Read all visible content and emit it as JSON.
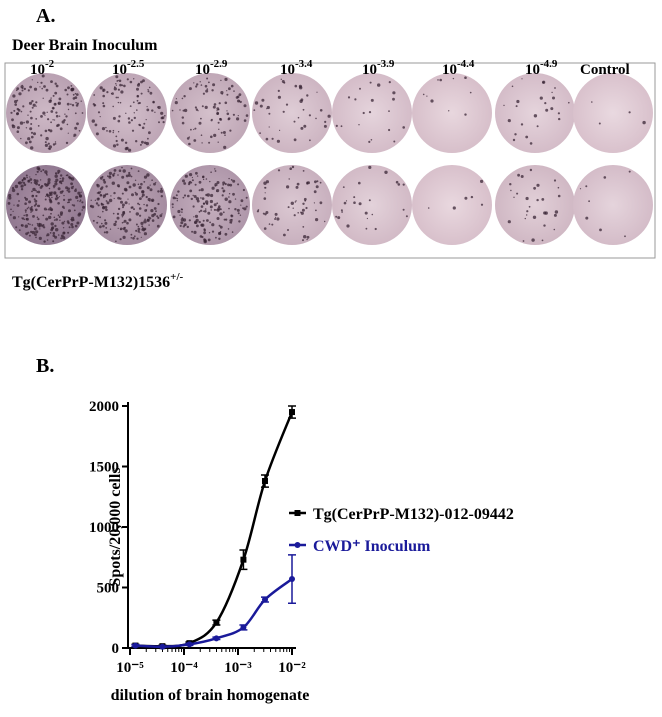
{
  "panel_a": {
    "label": "A.",
    "inoculum_title": "Deer Brain Inoculum",
    "dilutions": [
      {
        "base": "10",
        "exp": "-2"
      },
      {
        "base": "10",
        "exp": "-2.5"
      },
      {
        "base": "10",
        "exp": "-2.9"
      },
      {
        "base": "10",
        "exp": "-3.4"
      },
      {
        "base": "10",
        "exp": "-3.9"
      },
      {
        "base": "10",
        "exp": "-4.4"
      },
      {
        "base": "10",
        "exp": "-4.9"
      }
    ],
    "control": "Control",
    "cell_line": {
      "text": "Tg(CerPrP-M132)1536",
      "sup": "+/-"
    }
  },
  "panel_b_label": "B.",
  "chart_data": {
    "type": "scatter",
    "xlabel": "dilution of brain homogenate",
    "ylabel": "Spots/20,000 cells",
    "log_x": true,
    "xlim": [
      1e-05,
      0.01
    ],
    "xticks": [
      {
        "value": 1e-05,
        "label": "10⁻⁵"
      },
      {
        "value": 0.0001,
        "label": "10⁻⁴"
      },
      {
        "value": 0.001,
        "label": "10⁻³"
      },
      {
        "value": 0.01,
        "label": "10⁻²"
      }
    ],
    "ylim": [
      0,
      2000
    ],
    "yticks": [
      0,
      500,
      1000,
      1500,
      2000
    ],
    "x": [
      1.26e-05,
      3.98e-05,
      0.000126,
      0.000398,
      0.00126,
      0.00316,
      0.01
    ],
    "series": [
      {
        "name": "Tg(CerPrP-M132)-012-09442",
        "color": "#000000",
        "marker": "square",
        "values": [
          20,
          15,
          40,
          210,
          730,
          1380,
          1950
        ],
        "errors": [
          10,
          8,
          10,
          20,
          80,
          50,
          50
        ]
      },
      {
        "name": "CWD⁺ Inoculum",
        "color": "#1a1a9a",
        "marker": "circle",
        "values": [
          20,
          10,
          30,
          80,
          170,
          400,
          570
        ],
        "errors": [
          8,
          5,
          8,
          10,
          20,
          20,
          200
        ]
      }
    ]
  }
}
